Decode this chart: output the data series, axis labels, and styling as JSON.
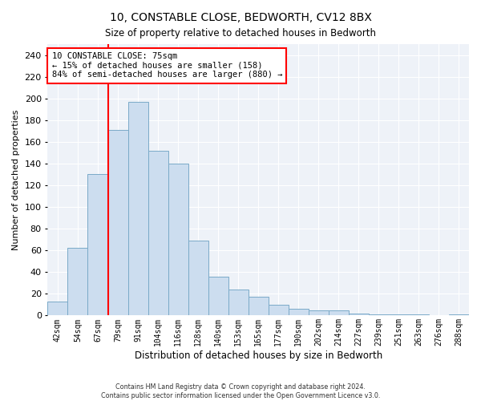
{
  "title": "10, CONSTABLE CLOSE, BEDWORTH, CV12 8BX",
  "subtitle": "Size of property relative to detached houses in Bedworth",
  "xlabel": "Distribution of detached houses by size in Bedworth",
  "ylabel": "Number of detached properties",
  "bar_labels": [
    "42sqm",
    "54sqm",
    "67sqm",
    "79sqm",
    "91sqm",
    "104sqm",
    "116sqm",
    "128sqm",
    "140sqm",
    "153sqm",
    "165sqm",
    "177sqm",
    "190sqm",
    "202sqm",
    "214sqm",
    "227sqm",
    "239sqm",
    "251sqm",
    "263sqm",
    "276sqm",
    "288sqm"
  ],
  "bar_heights": [
    13,
    62,
    130,
    171,
    197,
    152,
    140,
    69,
    36,
    24,
    17,
    10,
    6,
    5,
    5,
    2,
    1,
    1,
    1,
    0,
    1
  ],
  "bar_color": "#ccddef",
  "bar_edge_color": "#7aaac8",
  "vline_color": "red",
  "annotation_text": "10 CONSTABLE CLOSE: 75sqm\n← 15% of detached houses are smaller (158)\n84% of semi-detached houses are larger (880) →",
  "annotation_box_color": "white",
  "annotation_box_edge": "red",
  "ylim": [
    0,
    250
  ],
  "yticks": [
    0,
    20,
    40,
    60,
    80,
    100,
    120,
    140,
    160,
    180,
    200,
    220,
    240
  ],
  "background_color": "#eef2f8",
  "grid_color": "white",
  "footer_line1": "Contains HM Land Registry data © Crown copyright and database right 2024.",
  "footer_line2": "Contains public sector information licensed under the Open Government Licence v3.0."
}
